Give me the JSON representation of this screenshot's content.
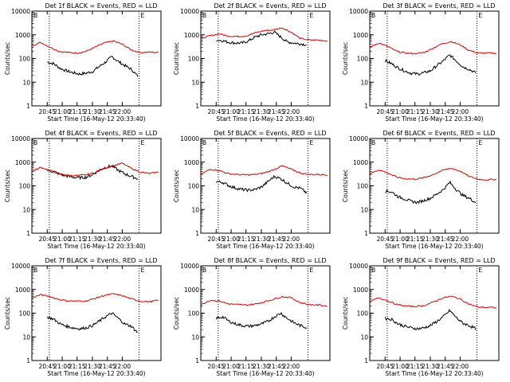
{
  "figure": {
    "title_template_note": "",
    "ylabel": "Counts/sec",
    "xlabel": "Start Time (16-May-12 20:33:40)",
    "marker_b": "B",
    "marker_e": "E",
    "x_ticks": [
      "20:45",
      "21:00",
      "21:15",
      "21:30",
      "21:45",
      "22:00"
    ],
    "y_ticks": [
      "1",
      "10",
      "100",
      "1000",
      "10000"
    ],
    "colors": {
      "events": "#000000",
      "lld": "#e00000",
      "axis": "#000000"
    }
  },
  "chart_data": [
    {
      "type": "line",
      "title": "Det 1f BLACK = Events, RED = LLD",
      "series": [
        {
          "name": "Events",
          "values": [
            70,
            60,
            38,
            30,
            25,
            22,
            24,
            28,
            45,
            70,
            120,
            75,
            50,
            35,
            18
          ]
        },
        {
          "name": "LLD",
          "values": [
            350,
            480,
            300,
            200,
            180,
            170,
            200,
            300,
            450,
            550,
            400,
            230,
            180,
            185,
            180
          ]
        }
      ]
    },
    {
      "type": "line",
      "title": "Det 2f BLACK = Events, RED = LLD",
      "series": [
        {
          "name": "Events",
          "values": [
            620,
            560,
            480,
            450,
            450,
            560,
            800,
            1000,
            1100,
            1300,
            800,
            500,
            450,
            420,
            380
          ]
        },
        {
          "name": "LLD",
          "values": [
            700,
            900,
            1100,
            900,
            850,
            900,
            1200,
            1500,
            1600,
            2000,
            1300,
            700,
            600,
            600,
            550
          ]
        }
      ]
    },
    {
      "type": "line",
      "title": "Det 3f BLACK = Events, RED = LLD",
      "series": [
        {
          "name": "Events",
          "values": [
            80,
            60,
            40,
            30,
            24,
            22,
            25,
            30,
            50,
            80,
            140,
            80,
            45,
            35,
            25
          ]
        },
        {
          "name": "LLD",
          "values": [
            300,
            450,
            320,
            200,
            170,
            160,
            180,
            270,
            420,
            520,
            380,
            220,
            170,
            170,
            165
          ]
        }
      ]
    },
    {
      "type": "line",
      "title": "Det 4f BLACK = Events, RED = LLD",
      "series": [
        {
          "name": "Events",
          "values": [
            450,
            400,
            300,
            260,
            230,
            220,
            230,
            300,
            450,
            600,
            700,
            450,
            320,
            250,
            200
          ]
        },
        {
          "name": "LLD",
          "values": [
            400,
            600,
            450,
            320,
            280,
            270,
            290,
            370,
            550,
            700,
            900,
            550,
            380,
            330,
            380
          ]
        }
      ]
    },
    {
      "type": "line",
      "title": "Det 5f BLACK = Events, RED = LLD",
      "series": [
        {
          "name": "Events",
          "values": [
            150,
            140,
            100,
            80,
            70,
            65,
            70,
            90,
            150,
            250,
            200,
            130,
            90,
            80,
            50
          ]
        },
        {
          "name": "LLD",
          "values": [
            300,
            500,
            450,
            330,
            300,
            290,
            300,
            350,
            470,
            700,
            500,
            350,
            300,
            300,
            290
          ]
        }
      ]
    },
    {
      "type": "line",
      "title": "Det 6f BLACK = Events, RED = LLD",
      "series": [
        {
          "name": "Events",
          "values": [
            60,
            55,
            35,
            28,
            22,
            20,
            24,
            30,
            45,
            70,
            140,
            70,
            40,
            30,
            20
          ]
        },
        {
          "name": "LLD",
          "values": [
            320,
            480,
            350,
            230,
            200,
            190,
            220,
            300,
            440,
            560,
            420,
            250,
            190,
            180,
            190
          ]
        }
      ]
    },
    {
      "type": "line",
      "title": "Det 7f BLACK = Events, RED = LLD",
      "series": [
        {
          "name": "Events",
          "values": [
            70,
            55,
            35,
            28,
            24,
            22,
            24,
            30,
            45,
            70,
            100,
            60,
            35,
            28,
            15
          ]
        },
        {
          "name": "LLD",
          "values": [
            450,
            600,
            500,
            380,
            330,
            320,
            330,
            420,
            560,
            650,
            550,
            400,
            320,
            300,
            350
          ]
        }
      ]
    },
    {
      "type": "line",
      "title": "Det 8f BLACK = Events, RED = LLD",
      "series": [
        {
          "name": "Events",
          "values": [
            60,
            70,
            45,
            35,
            30,
            28,
            30,
            35,
            45,
            70,
            100,
            60,
            40,
            30,
            25
          ]
        },
        {
          "name": "LLD",
          "values": [
            220,
            350,
            330,
            250,
            230,
            220,
            240,
            300,
            380,
            500,
            450,
            280,
            230,
            220,
            200
          ]
        }
      ]
    },
    {
      "type": "line",
      "title": "Det 9f BLACK = Events, RED = LLD",
      "series": [
        {
          "name": "Events",
          "values": [
            60,
            55,
            35,
            28,
            24,
            22,
            24,
            30,
            45,
            70,
            130,
            65,
            38,
            30,
            22
          ]
        },
        {
          "name": "LLD",
          "values": [
            300,
            450,
            330,
            230,
            200,
            190,
            210,
            290,
            430,
            520,
            400,
            240,
            180,
            175,
            170
          ]
        }
      ]
    }
  ]
}
